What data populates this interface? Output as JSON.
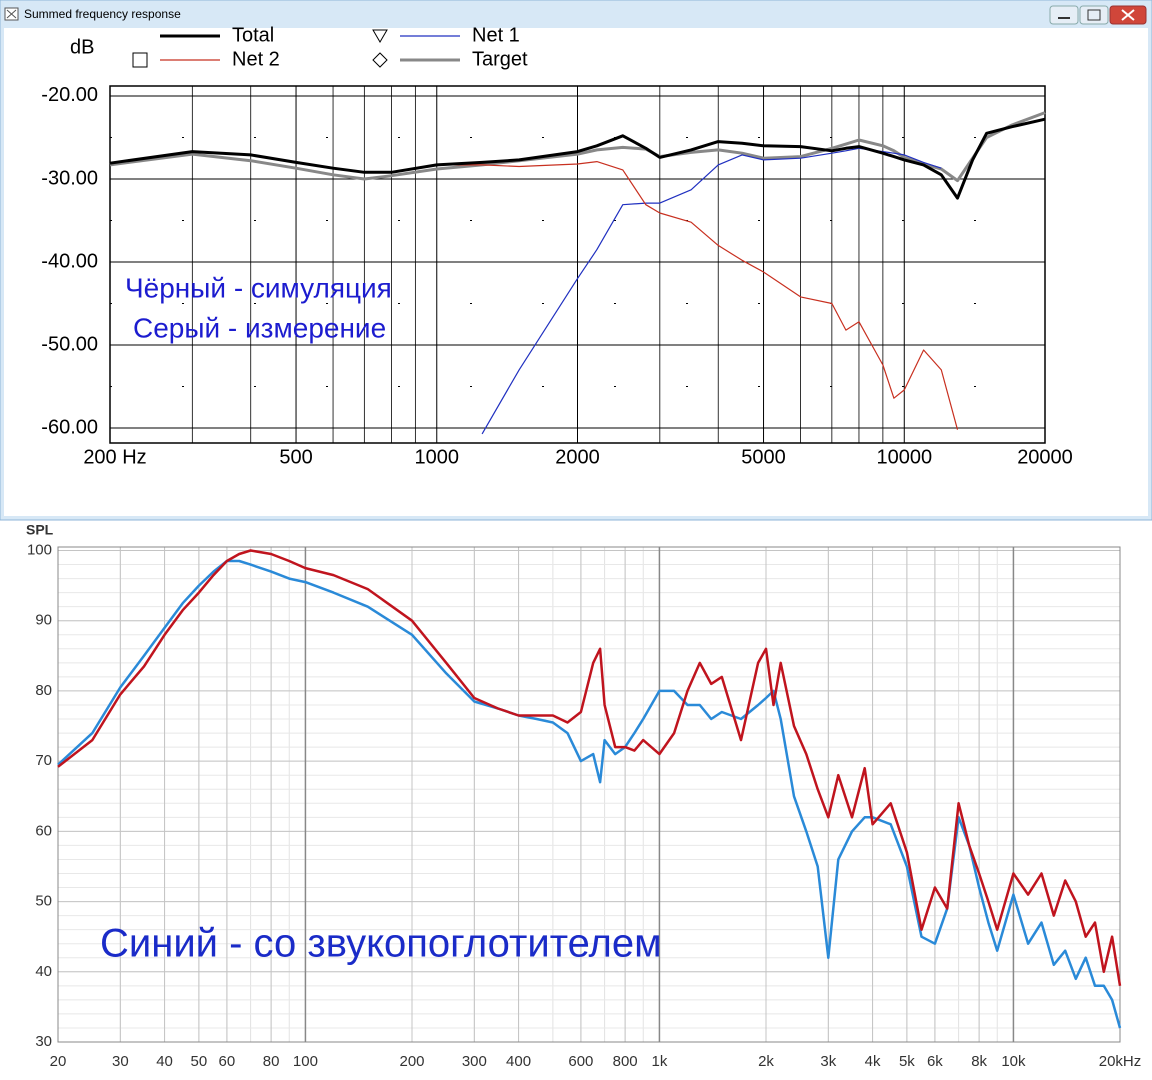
{
  "chart_data": [
    {
      "type": "line",
      "window_title": "Summed frequency response",
      "y_label": "dB",
      "x_scale": "log",
      "xlim": [
        200,
        20000
      ],
      "xticks": [
        {
          "value": 200,
          "label": "200 Hz"
        },
        500,
        1000,
        2000,
        5000,
        10000,
        20000
      ],
      "minor_xticks": [
        300,
        400,
        600,
        700,
        800,
        900,
        3000,
        4000,
        6000,
        7000,
        8000,
        9000
      ],
      "ylim": [
        -61.8,
        -18.8
      ],
      "yticks": [
        {
          "value": -20,
          "label": "-20.00"
        },
        {
          "value": -30,
          "label": "-30.00"
        },
        {
          "value": -40,
          "label": "-40.00"
        },
        {
          "value": -50,
          "label": "-50.00"
        },
        {
          "value": -60,
          "label": "-60.00"
        }
      ],
      "minor_yticks": [
        -25,
        -35,
        -45,
        -55
      ],
      "grid": true,
      "annotations": [
        "Чёрный - симуляция",
        "Серый - измерение"
      ],
      "x": [
        200,
        300,
        400,
        500,
        600,
        700,
        800,
        1000,
        1250,
        1500,
        2000,
        2200,
        2500,
        2800,
        3000,
        3500,
        4000,
        4500,
        5000,
        6000,
        7000,
        7500,
        8000,
        9000,
        9500,
        10000,
        11000,
        12000,
        13000,
        14000,
        15000,
        17000,
        20000
      ],
      "series": [
        {
          "name": "Total",
          "color": "#000000",
          "values": [
            -28.1,
            -26.7,
            -27.1,
            -28.0,
            -28.7,
            -29.2,
            -29.2,
            -28.3,
            -28.0,
            -27.7,
            -26.7,
            -26.0,
            -24.8,
            -26.3,
            -27.4,
            -26.5,
            -25.5,
            -25.7,
            -26.0,
            -26.1,
            -26.6,
            -26.3,
            -26.1,
            -26.9,
            -27.3,
            -27.7,
            -28.3,
            -29.5,
            -32.3,
            -27.7,
            -24.5,
            -23.7,
            -22.8
          ]
        },
        {
          "name": "Net 2",
          "color": "#c83020",
          "marker": "square",
          "values": [
            null,
            null,
            null,
            null,
            null,
            null,
            null,
            -28.3,
            -28.3,
            -28.5,
            -28.2,
            -27.9,
            -28.9,
            -33.1,
            -34.1,
            -35.2,
            -38.0,
            -39.8,
            -41.2,
            -44.2,
            -45.0,
            -48.2,
            -47.2,
            -52.4,
            -56.4,
            -55.4,
            -50.6,
            -53.0,
            -60.2,
            null,
            null,
            null,
            null
          ]
        },
        {
          "name": "Net 1",
          "color": "#2030c0",
          "marker": "triangle",
          "values": [
            null,
            null,
            null,
            null,
            null,
            null,
            null,
            null,
            -60.7,
            -53.0,
            -42.0,
            -38.5,
            -33.1,
            -32.9,
            -32.9,
            -31.3,
            -28.3,
            -27.1,
            -27.7,
            -27.5,
            -26.9,
            -26.6,
            -26.3,
            -26.7,
            -26.9,
            -27.1,
            -28.0,
            -28.7,
            null,
            null,
            null,
            null,
            null
          ]
        },
        {
          "name": "Target",
          "color": "#888888",
          "marker": "diamond",
          "values": [
            -28.3,
            -27.0,
            -27.8,
            -28.7,
            -29.5,
            -30.0,
            -29.6,
            -28.8,
            -28.3,
            -27.8,
            -27.0,
            -26.5,
            -26.2,
            -26.4,
            -27.3,
            -26.8,
            -26.5,
            -26.9,
            -27.5,
            -27.3,
            -26.3,
            -25.8,
            -25.3,
            -26.0,
            -26.6,
            -27.4,
            -28.2,
            -28.8,
            -30.2,
            -27.5,
            -25.0,
            -23.5,
            -22.0
          ]
        }
      ]
    },
    {
      "type": "line",
      "y_label": "SPL",
      "x_scale": "log",
      "xlim": [
        20,
        20000
      ],
      "xticks": [
        20,
        30,
        40,
        50,
        60,
        80,
        100,
        200,
        300,
        400,
        600,
        800,
        {
          "value": 1000,
          "label": "1k"
        },
        {
          "value": 2000,
          "label": "2k"
        },
        {
          "value": 3000,
          "label": "3k"
        },
        {
          "value": 4000,
          "label": "4k"
        },
        {
          "value": 5000,
          "label": "5k"
        },
        {
          "value": 6000,
          "label": "6k"
        },
        {
          "value": 8000,
          "label": "8k"
        },
        {
          "value": 10000,
          "label": "10k"
        },
        {
          "value": 20000,
          "label": "20kHz"
        }
      ],
      "x_minor_grid": true,
      "ylim": [
        30,
        100.5
      ],
      "yticks": [
        30,
        40,
        50,
        60,
        70,
        80,
        90,
        100
      ],
      "minor_ystep": 2,
      "grid": true,
      "annotations": [
        "Синий - со звукопоглотителем"
      ],
      "x": [
        20,
        25,
        30,
        35,
        40,
        45,
        50,
        55,
        60,
        65,
        70,
        80,
        90,
        100,
        120,
        150,
        200,
        250,
        300,
        350,
        400,
        450,
        500,
        550,
        600,
        650,
        680,
        700,
        750,
        800,
        850,
        900,
        1000,
        1100,
        1200,
        1300,
        1400,
        1500,
        1700,
        1900,
        2000,
        2100,
        2200,
        2400,
        2600,
        2800,
        3000,
        3200,
        3500,
        3800,
        4000,
        4500,
        5000,
        5500,
        6000,
        6500,
        7000,
        7500,
        8000,
        8500,
        9000,
        10000,
        11000,
        12000,
        13000,
        14000,
        15000,
        16000,
        17000,
        18000,
        19000,
        20000
      ],
      "series": [
        {
          "color": "#c0141e",
          "values": [
            69.2,
            73,
            79.5,
            83.5,
            88,
            91.5,
            94,
            96.5,
            98.5,
            99.5,
            100,
            99.5,
            98.5,
            97.5,
            96.5,
            94.5,
            90,
            84,
            79,
            77.5,
            76.5,
            76.5,
            76.5,
            75.5,
            77,
            84,
            86,
            78,
            72,
            72,
            71.5,
            73,
            71,
            74,
            80,
            84,
            81,
            82,
            73,
            84,
            86,
            78,
            84,
            75,
            71,
            66,
            62,
            68,
            62,
            69,
            61,
            64,
            57,
            46,
            52,
            49,
            64,
            58,
            54,
            50,
            46,
            54,
            51,
            54,
            48,
            53,
            50,
            45,
            47,
            40,
            45,
            38
          ]
        },
        {
          "color": "#2a8ad8",
          "values": [
            69.5,
            74,
            80.5,
            85,
            89,
            92.5,
            95,
            97,
            98.5,
            98.5,
            98,
            97,
            96,
            95.5,
            94,
            92,
            88,
            82.5,
            78.5,
            77.5,
            76.5,
            76,
            75.5,
            74,
            70,
            71,
            67,
            73,
            71,
            72,
            74,
            76,
            80,
            80,
            78,
            78,
            76,
            77,
            76,
            78,
            79,
            80,
            76,
            65,
            60,
            55,
            42,
            56,
            60,
            62,
            62,
            61,
            55,
            45,
            44,
            49,
            62,
            58,
            52,
            47,
            43,
            51,
            44,
            47,
            41,
            43,
            39,
            42,
            38,
            38,
            36,
            32
          ]
        }
      ]
    }
  ]
}
